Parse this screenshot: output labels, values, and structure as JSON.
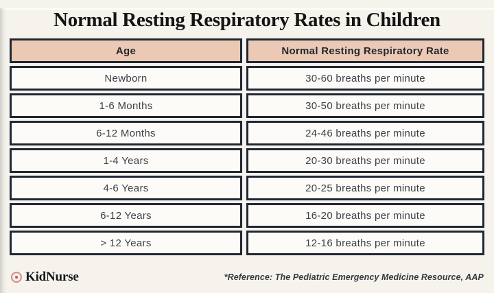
{
  "chart_data": {
    "type": "table",
    "title": "Normal Resting Respiratory Rates in Children",
    "columns": [
      "Age",
      "Normal Resting Respiratory Rate"
    ],
    "rows": [
      [
        "Newborn",
        "30-60 breaths per minute"
      ],
      [
        "1-6 Months",
        "30-50 breaths per minute"
      ],
      [
        "6-12 Months",
        "24-46 breaths per minute"
      ],
      [
        "1-4 Years",
        "20-30 breaths per minute"
      ],
      [
        "4-6 Years",
        "20-25 breaths per minute"
      ],
      [
        "6-12 Years",
        "16-20 breaths per minute"
      ],
      [
        "> 12 Years",
        "12-16 breaths per minute"
      ]
    ],
    "footnote": "*Reference: The Pediatric Emergency Medicine Resource, AAP"
  },
  "footer": {
    "brand": "KidNurse"
  },
  "icons": {
    "brand": "bullseye-icon"
  },
  "colors": {
    "page_bg": "#f5f3ec",
    "cell_bg": "#fcfbf8",
    "header_bg": "#ecc9b4",
    "border": "#202734",
    "brand_ring": "#cf8d87",
    "brand_dot": "#b4625c"
  }
}
